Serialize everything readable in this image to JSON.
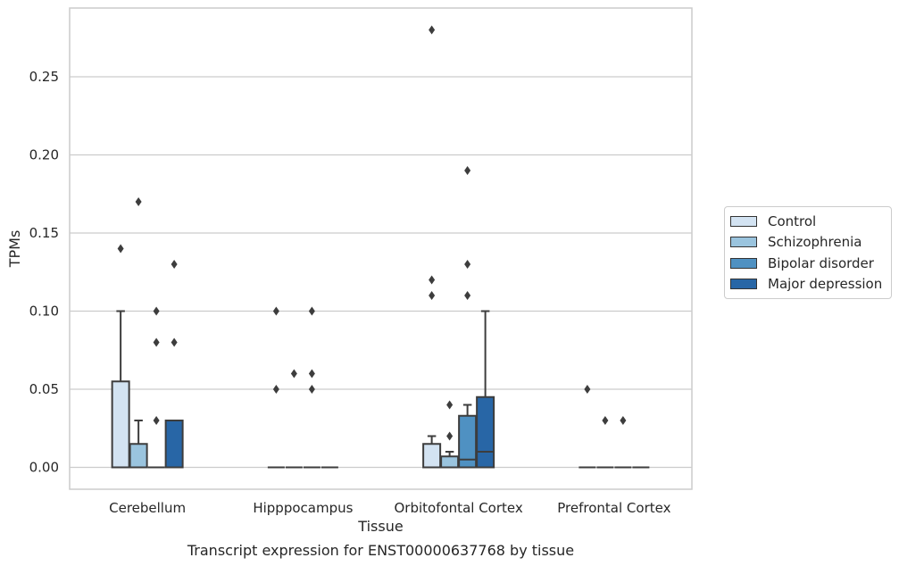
{
  "chart_data": {
    "type": "box",
    "title": "Transcript expression for ENST00000637768 by tissue",
    "xlabel": "Tissue",
    "ylabel": "TPMs",
    "ylim": [
      -0.014,
      0.294
    ],
    "yticks": [
      0.0,
      0.05,
      0.1,
      0.15,
      0.2,
      0.25
    ],
    "ytick_labels": [
      "0.00",
      "0.05",
      "0.10",
      "0.15",
      "0.20",
      "0.25"
    ],
    "grid": "horizontal",
    "legend_position": "right",
    "categories": [
      "Cerebellum",
      "Hipppocampus",
      "Orbitofontal Cortex",
      "Prefrontal Cortex"
    ],
    "series": [
      {
        "name": "Control",
        "color": "#d3e3f2",
        "boxes": [
          {
            "q1": 0.0,
            "median": 0.0,
            "q3": 0.055,
            "whisker_low": 0.0,
            "whisker_high": 0.1,
            "outliers": [
              0.14
            ]
          },
          {
            "q1": 0.0,
            "median": 0.0,
            "q3": 0.0,
            "whisker_low": 0.0,
            "whisker_high": 0.0,
            "outliers": [
              0.05,
              0.1
            ]
          },
          {
            "q1": 0.0,
            "median": 0.0,
            "q3": 0.015,
            "whisker_low": 0.0,
            "whisker_high": 0.02,
            "outliers": [
              0.11,
              0.12,
              0.28
            ]
          },
          {
            "q1": 0.0,
            "median": 0.0,
            "q3": 0.0,
            "whisker_low": 0.0,
            "whisker_high": 0.0,
            "outliers": [
              0.05
            ]
          }
        ]
      },
      {
        "name": "Schizophrenia",
        "color": "#9ac4de",
        "boxes": [
          {
            "q1": 0.0,
            "median": 0.0,
            "q3": 0.015,
            "whisker_low": 0.0,
            "whisker_high": 0.03,
            "outliers": [
              0.17
            ]
          },
          {
            "q1": 0.0,
            "median": 0.0,
            "q3": 0.0,
            "whisker_low": 0.0,
            "whisker_high": 0.0,
            "outliers": [
              0.06
            ]
          },
          {
            "q1": 0.0,
            "median": 0.0,
            "q3": 0.007,
            "whisker_low": 0.0,
            "whisker_high": 0.01,
            "outliers": [
              0.02,
              0.04
            ]
          },
          {
            "q1": 0.0,
            "median": 0.0,
            "q3": 0.0,
            "whisker_low": 0.0,
            "whisker_high": 0.0,
            "outliers": [
              0.03
            ]
          }
        ]
      },
      {
        "name": "Bipolar disorder",
        "color": "#4f91c2",
        "boxes": [
          {
            "q1": 0.0,
            "median": 0.0,
            "q3": 0.0,
            "whisker_low": 0.0,
            "whisker_high": 0.0,
            "outliers": [
              0.03,
              0.08,
              0.1
            ]
          },
          {
            "q1": 0.0,
            "median": 0.0,
            "q3": 0.0,
            "whisker_low": 0.0,
            "whisker_high": 0.0,
            "outliers": [
              0.05,
              0.06,
              0.1
            ]
          },
          {
            "q1": 0.0,
            "median": 0.005,
            "q3": 0.033,
            "whisker_low": 0.0,
            "whisker_high": 0.04,
            "outliers": [
              0.11,
              0.13,
              0.19
            ]
          },
          {
            "q1": 0.0,
            "median": 0.0,
            "q3": 0.0,
            "whisker_low": 0.0,
            "whisker_high": 0.0,
            "outliers": [
              0.03
            ]
          }
        ]
      },
      {
        "name": "Major depression",
        "color": "#2866a6",
        "boxes": [
          {
            "q1": 0.0,
            "median": 0.0,
            "q3": 0.03,
            "whisker_low": 0.0,
            "whisker_high": 0.03,
            "outliers": [
              0.08,
              0.13
            ]
          },
          {
            "q1": 0.0,
            "median": 0.0,
            "q3": 0.0,
            "whisker_low": 0.0,
            "whisker_high": 0.0,
            "outliers": []
          },
          {
            "q1": 0.0,
            "median": 0.01,
            "q3": 0.045,
            "whisker_low": 0.0,
            "whisker_high": 0.1,
            "outliers": []
          },
          {
            "q1": 0.0,
            "median": 0.0,
            "q3": 0.0,
            "whisker_low": 0.0,
            "whisker_high": 0.0,
            "outliers": []
          }
        ]
      }
    ]
  }
}
